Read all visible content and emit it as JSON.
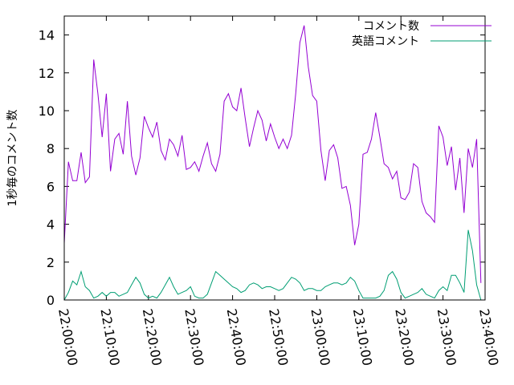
{
  "chart_data": {
    "type": "line",
    "ylabel": "1秒毎のコメント数",
    "xlabel": "",
    "ylim": [
      0,
      15
    ],
    "yticks": [
      0,
      2,
      4,
      6,
      8,
      10,
      12,
      14
    ],
    "xlim": [
      "22:00:00",
      "23:40:00"
    ],
    "xticks": [
      "22:00:00",
      "22:10:00",
      "22:20:00",
      "22:30:00",
      "22:40:00",
      "22:50:00",
      "23:00:00",
      "23:10:00",
      "23:20:00",
      "23:30:00",
      "23:40:00"
    ],
    "grid": false,
    "legend_position": "top-right",
    "series": [
      {
        "name": "コメント数",
        "color": "#9400d3",
        "points": [
          [
            "22:00:00",
            3.0
          ],
          [
            "22:01:00",
            7.3
          ],
          [
            "22:02:00",
            6.3
          ],
          [
            "22:03:00",
            6.3
          ],
          [
            "22:04:00",
            7.8
          ],
          [
            "22:05:00",
            6.2
          ],
          [
            "22:06:00",
            6.5
          ],
          [
            "22:07:00",
            12.7
          ],
          [
            "22:08:00",
            10.9
          ],
          [
            "22:09:00",
            8.6
          ],
          [
            "22:10:00",
            10.9
          ],
          [
            "22:11:00",
            6.8
          ],
          [
            "22:12:00",
            8.5
          ],
          [
            "22:13:00",
            8.8
          ],
          [
            "22:14:00",
            7.7
          ],
          [
            "22:15:00",
            10.5
          ],
          [
            "22:16:00",
            7.6
          ],
          [
            "22:17:00",
            6.6
          ],
          [
            "22:18:00",
            7.5
          ],
          [
            "22:19:00",
            9.7
          ],
          [
            "22:20:00",
            9.1
          ],
          [
            "22:21:00",
            8.6
          ],
          [
            "22:22:00",
            9.4
          ],
          [
            "22:23:00",
            7.9
          ],
          [
            "22:24:00",
            7.4
          ],
          [
            "22:25:00",
            8.5
          ],
          [
            "22:26:00",
            8.2
          ],
          [
            "22:27:00",
            7.6
          ],
          [
            "22:28:00",
            8.7
          ],
          [
            "22:29:00",
            6.9
          ],
          [
            "22:30:00",
            7.0
          ],
          [
            "22:31:00",
            7.3
          ],
          [
            "22:32:00",
            6.8
          ],
          [
            "22:33:00",
            7.6
          ],
          [
            "22:34:00",
            8.3
          ],
          [
            "22:35:00",
            7.2
          ],
          [
            "22:36:00",
            6.8
          ],
          [
            "22:37:00",
            7.7
          ],
          [
            "22:38:00",
            10.5
          ],
          [
            "22:39:00",
            10.9
          ],
          [
            "22:40:00",
            10.2
          ],
          [
            "22:41:00",
            10.0
          ],
          [
            "22:42:00",
            11.2
          ],
          [
            "22:43:00",
            9.6
          ],
          [
            "22:44:00",
            8.1
          ],
          [
            "22:45:00",
            9.1
          ],
          [
            "22:46:00",
            10.0
          ],
          [
            "22:47:00",
            9.5
          ],
          [
            "22:48:00",
            8.4
          ],
          [
            "22:49:00",
            9.3
          ],
          [
            "22:50:00",
            8.6
          ],
          [
            "22:51:00",
            8.0
          ],
          [
            "22:52:00",
            8.5
          ],
          [
            "22:53:00",
            8.0
          ],
          [
            "22:54:00",
            8.7
          ],
          [
            "22:55:00",
            10.9
          ],
          [
            "22:56:00",
            13.6
          ],
          [
            "22:57:00",
            14.5
          ],
          [
            "22:58:00",
            12.3
          ],
          [
            "22:59:00",
            10.8
          ],
          [
            "23:00:00",
            10.5
          ],
          [
            "23:01:00",
            7.9
          ],
          [
            "23:02:00",
            6.3
          ],
          [
            "23:03:00",
            7.9
          ],
          [
            "23:04:00",
            8.2
          ],
          [
            "23:05:00",
            7.5
          ],
          [
            "23:06:00",
            5.9
          ],
          [
            "23:07:00",
            6.0
          ],
          [
            "23:08:00",
            5.0
          ],
          [
            "23:09:00",
            2.9
          ],
          [
            "23:10:00",
            4.0
          ],
          [
            "23:11:00",
            7.7
          ],
          [
            "23:12:00",
            7.8
          ],
          [
            "23:13:00",
            8.5
          ],
          [
            "23:14:00",
            9.9
          ],
          [
            "23:15:00",
            8.6
          ],
          [
            "23:16:00",
            7.2
          ],
          [
            "23:17:00",
            7.0
          ],
          [
            "23:18:00",
            6.4
          ],
          [
            "23:19:00",
            6.8
          ],
          [
            "23:20:00",
            5.4
          ],
          [
            "23:21:00",
            5.3
          ],
          [
            "23:22:00",
            5.7
          ],
          [
            "23:23:00",
            7.2
          ],
          [
            "23:24:00",
            7.0
          ],
          [
            "23:25:00",
            5.2
          ],
          [
            "23:26:00",
            4.6
          ],
          [
            "23:27:00",
            4.4
          ],
          [
            "23:28:00",
            4.1
          ],
          [
            "23:29:00",
            9.2
          ],
          [
            "23:30:00",
            8.6
          ],
          [
            "23:31:00",
            7.1
          ],
          [
            "23:32:00",
            8.1
          ],
          [
            "23:33:00",
            5.8
          ],
          [
            "23:34:00",
            7.5
          ],
          [
            "23:35:00",
            4.6
          ],
          [
            "23:36:00",
            8.0
          ],
          [
            "23:37:00",
            7.0
          ],
          [
            "23:38:00",
            8.5
          ],
          [
            "23:39:00",
            0.9
          ]
        ]
      },
      {
        "name": "英語コメント",
        "color": "#009e73",
        "points": [
          [
            "22:00:00",
            0.0
          ],
          [
            "22:01:00",
            0.4
          ],
          [
            "22:02:00",
            1.0
          ],
          [
            "22:03:00",
            0.8
          ],
          [
            "22:04:00",
            1.5
          ],
          [
            "22:05:00",
            0.7
          ],
          [
            "22:06:00",
            0.5
          ],
          [
            "22:07:00",
            0.1
          ],
          [
            "22:08:00",
            0.2
          ],
          [
            "22:09:00",
            0.4
          ],
          [
            "22:10:00",
            0.2
          ],
          [
            "22:11:00",
            0.4
          ],
          [
            "22:12:00",
            0.4
          ],
          [
            "22:13:00",
            0.2
          ],
          [
            "22:14:00",
            0.3
          ],
          [
            "22:15:00",
            0.4
          ],
          [
            "22:16:00",
            0.8
          ],
          [
            "22:17:00",
            1.2
          ],
          [
            "22:18:00",
            0.9
          ],
          [
            "22:19:00",
            0.3
          ],
          [
            "22:20:00",
            0.1
          ],
          [
            "22:21:00",
            0.2
          ],
          [
            "22:22:00",
            0.1
          ],
          [
            "22:23:00",
            0.4
          ],
          [
            "22:24:00",
            0.8
          ],
          [
            "22:25:00",
            1.2
          ],
          [
            "22:26:00",
            0.7
          ],
          [
            "22:27:00",
            0.3
          ],
          [
            "22:28:00",
            0.4
          ],
          [
            "22:29:00",
            0.5
          ],
          [
            "22:30:00",
            0.7
          ],
          [
            "22:31:00",
            0.2
          ],
          [
            "22:32:00",
            0.1
          ],
          [
            "22:33:00",
            0.1
          ],
          [
            "22:34:00",
            0.3
          ],
          [
            "22:35:00",
            0.9
          ],
          [
            "22:36:00",
            1.5
          ],
          [
            "22:37:00",
            1.3
          ],
          [
            "22:38:00",
            1.1
          ],
          [
            "22:39:00",
            0.9
          ],
          [
            "22:40:00",
            0.7
          ],
          [
            "22:41:00",
            0.6
          ],
          [
            "22:42:00",
            0.4
          ],
          [
            "22:43:00",
            0.5
          ],
          [
            "22:44:00",
            0.8
          ],
          [
            "22:45:00",
            0.9
          ],
          [
            "22:46:00",
            0.8
          ],
          [
            "22:47:00",
            0.6
          ],
          [
            "22:48:00",
            0.7
          ],
          [
            "22:49:00",
            0.7
          ],
          [
            "22:50:00",
            0.6
          ],
          [
            "22:51:00",
            0.5
          ],
          [
            "22:52:00",
            0.6
          ],
          [
            "22:53:00",
            0.9
          ],
          [
            "22:54:00",
            1.2
          ],
          [
            "22:55:00",
            1.1
          ],
          [
            "22:56:00",
            0.9
          ],
          [
            "22:57:00",
            0.5
          ],
          [
            "22:58:00",
            0.6
          ],
          [
            "22:59:00",
            0.6
          ],
          [
            "23:00:00",
            0.5
          ],
          [
            "23:01:00",
            0.5
          ],
          [
            "23:02:00",
            0.7
          ],
          [
            "23:03:00",
            0.8
          ],
          [
            "23:04:00",
            0.9
          ],
          [
            "23:05:00",
            0.9
          ],
          [
            "23:06:00",
            0.8
          ],
          [
            "23:07:00",
            0.9
          ],
          [
            "23:08:00",
            1.2
          ],
          [
            "23:09:00",
            1.0
          ],
          [
            "23:10:00",
            0.5
          ],
          [
            "23:11:00",
            0.1
          ],
          [
            "23:12:00",
            0.1
          ],
          [
            "23:13:00",
            0.1
          ],
          [
            "23:14:00",
            0.1
          ],
          [
            "23:15:00",
            0.2
          ],
          [
            "23:16:00",
            0.5
          ],
          [
            "23:17:00",
            1.3
          ],
          [
            "23:18:00",
            1.5
          ],
          [
            "23:19:00",
            1.1
          ],
          [
            "23:20:00",
            0.4
          ],
          [
            "23:21:00",
            0.1
          ],
          [
            "23:22:00",
            0.2
          ],
          [
            "23:23:00",
            0.3
          ],
          [
            "23:24:00",
            0.4
          ],
          [
            "23:25:00",
            0.6
          ],
          [
            "23:26:00",
            0.3
          ],
          [
            "23:27:00",
            0.2
          ],
          [
            "23:28:00",
            0.1
          ],
          [
            "23:29:00",
            0.5
          ],
          [
            "23:30:00",
            0.7
          ],
          [
            "23:31:00",
            0.5
          ],
          [
            "23:32:00",
            1.3
          ],
          [
            "23:33:00",
            1.3
          ],
          [
            "23:34:00",
            0.9
          ],
          [
            "23:35:00",
            0.4
          ],
          [
            "23:36:00",
            3.7
          ],
          [
            "23:37:00",
            2.6
          ],
          [
            "23:38:00",
            0.8
          ],
          [
            "23:39:00",
            0.0
          ]
        ]
      }
    ]
  }
}
